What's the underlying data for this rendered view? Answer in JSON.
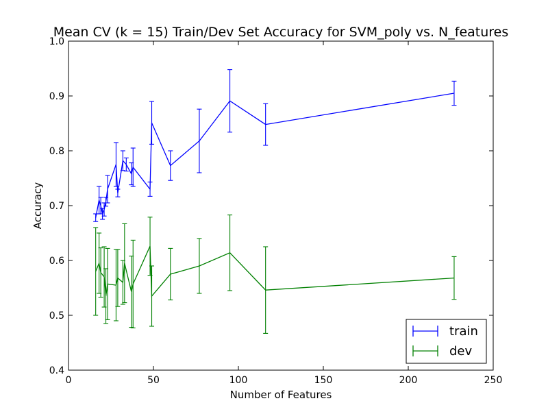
{
  "chart_data": {
    "type": "line",
    "title": "Mean CV (k = 15) Train/Dev Set Accuracy for SVM_poly vs. N_features",
    "xlabel": "Number of Features",
    "ylabel": "Accuracy",
    "xlim": [
      0,
      250
    ],
    "ylim": [
      0.4,
      1.0
    ],
    "xticks": [
      0,
      50,
      100,
      150,
      200,
      250
    ],
    "xtick_labels": [
      "0",
      "50",
      "100",
      "150",
      "200",
      "250"
    ],
    "yticks": [
      0.4,
      0.5,
      0.6,
      0.7,
      0.8,
      0.9,
      1.0
    ],
    "ytick_labels": [
      "0.4",
      "0.5",
      "0.6",
      "0.7",
      "0.8",
      "0.9",
      "1.0"
    ],
    "grid": false,
    "legend": {
      "placement": "lower-right"
    },
    "series": [
      {
        "name": "train",
        "color": "#0000ff",
        "x": [
          16,
          18,
          19,
          20,
          21,
          22,
          23,
          28,
          29,
          32,
          34,
          37,
          38,
          48,
          49,
          60,
          77,
          95,
          116,
          227
        ],
        "y": [
          0.678,
          0.71,
          0.7,
          0.685,
          0.693,
          0.707,
          0.73,
          0.775,
          0.723,
          0.782,
          0.775,
          0.758,
          0.77,
          0.73,
          0.851,
          0.773,
          0.818,
          0.891,
          0.848,
          0.905
        ],
        "err": [
          0.007,
          0.025,
          0.015,
          0.01,
          0.012,
          0.008,
          0.025,
          0.04,
          0.007,
          0.018,
          0.012,
          0.02,
          0.035,
          0.013,
          0.039,
          0.027,
          0.058,
          0.057,
          0.038,
          0.022
        ]
      },
      {
        "name": "dev",
        "color": "#008000",
        "x": [
          16,
          18,
          19,
          21,
          22,
          23,
          28,
          29,
          32,
          33,
          37,
          38,
          48,
          49,
          60,
          77,
          95,
          116,
          227
        ],
        "y": [
          0.58,
          0.595,
          0.578,
          0.57,
          0.535,
          0.557,
          0.555,
          0.568,
          0.56,
          0.595,
          0.543,
          0.557,
          0.626,
          0.535,
          0.575,
          0.59,
          0.614,
          0.546,
          0.568
        ],
        "err": [
          0.08,
          0.055,
          0.045,
          0.055,
          0.05,
          0.065,
          0.065,
          0.052,
          0.04,
          0.072,
          0.065,
          0.08,
          0.053,
          0.055,
          0.047,
          0.05,
          0.069,
          0.079,
          0.039
        ]
      }
    ]
  }
}
